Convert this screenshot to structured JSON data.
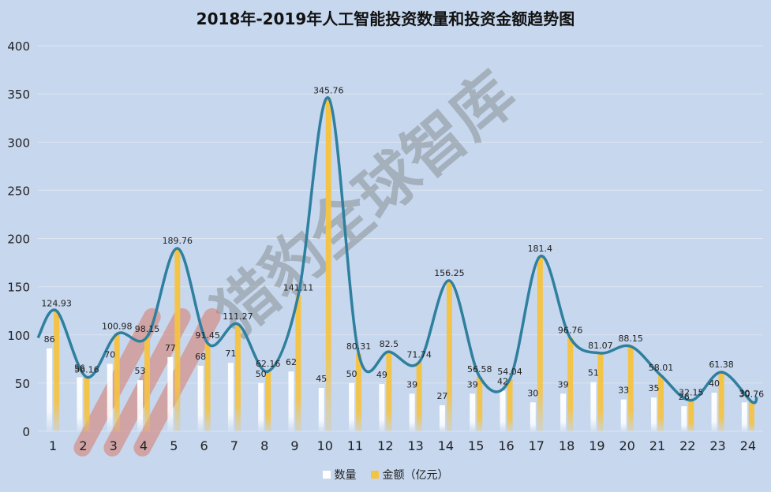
{
  "chart_data": {
    "type": "bar",
    "title": "2018年-2019年人工智能投资数量和投资金额趋势图",
    "categories": [
      "1",
      "2",
      "3",
      "4",
      "5",
      "6",
      "7",
      "8",
      "9",
      "10",
      "11",
      "12",
      "13",
      "14",
      "15",
      "16",
      "17",
      "18",
      "19",
      "20",
      "21",
      "22",
      "23",
      "24"
    ],
    "series": [
      {
        "name": "数量",
        "color": "#ffffff",
        "values": [
          86,
          56,
          70,
          53,
          77,
          68,
          71,
          50,
          62,
          45,
          50,
          49,
          39,
          27,
          39,
          42,
          30,
          39,
          51,
          33,
          35,
          26,
          40,
          30
        ],
        "labels": [
          "86",
          "56",
          "70",
          "53",
          "77",
          "68",
          "71",
          "50",
          "62",
          "45",
          "50",
          "49",
          "39",
          "27",
          "39",
          "42",
          "30",
          "39",
          "51",
          "33",
          "35",
          "26",
          "40",
          "30"
        ]
      },
      {
        "name": "金额（亿元）",
        "color": "#f5c342",
        "values": [
          124.93,
          56.16,
          100.98,
          98.15,
          189.76,
          91.45,
          111.27,
          62.16,
          141.11,
          345.76,
          80.31,
          82.5,
          71.74,
          156.25,
          56.58,
          54.04,
          181.4,
          96.76,
          81.07,
          88.15,
          58.01,
          32.15,
          61.38,
          30.76
        ],
        "labels": [
          "124.93",
          "56.16",
          "100.98",
          "98.15",
          "189.76",
          "91.45",
          "111.27",
          "62.16",
          "141.11",
          "345.76",
          "80.31",
          "82.5",
          "71.74",
          "156.25",
          "56.58",
          "54.04",
          "181.4",
          "96.76",
          "81.07",
          "88.15",
          "58.01",
          "32.15",
          "61.38",
          "30.76"
        ]
      }
    ],
    "trend_line": {
      "color": "#2f7f9e"
    },
    "y_ticks": [
      "0",
      "50",
      "100",
      "150",
      "200",
      "250",
      "300",
      "350",
      "400"
    ],
    "ylim": [
      0,
      400
    ],
    "grid": true,
    "legend_position": "bottom",
    "watermark": "猎豹全球智库"
  }
}
